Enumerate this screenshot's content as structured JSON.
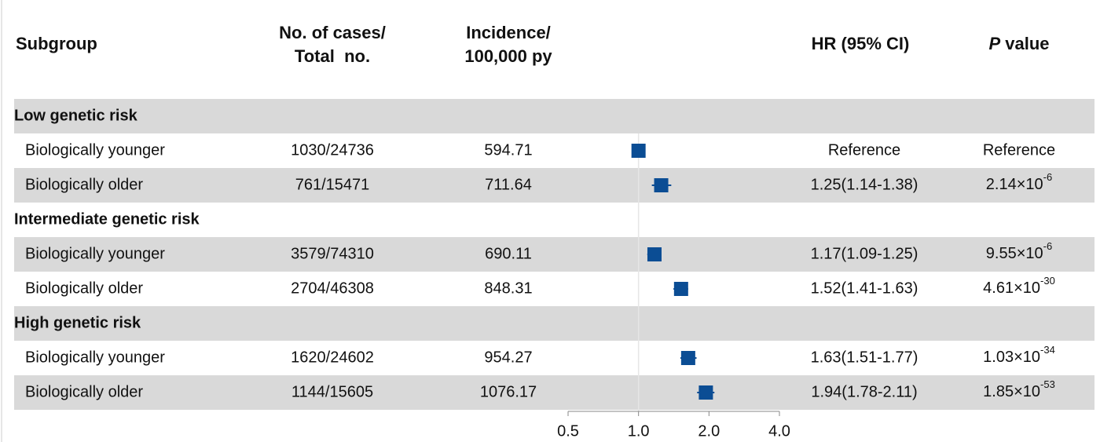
{
  "chart_data": {
    "type": "forest",
    "headers": {
      "subgroup": "Subgroup",
      "cases": [
        "No. of cases/",
        "Total  no."
      ],
      "incidence": [
        "Incidence/",
        "100,000 py"
      ],
      "hr": "HR (95% CI)",
      "p": {
        "italic": "P",
        "rest": "value"
      }
    },
    "groups": [
      {
        "name": "Low  genetic risk",
        "rows": [
          {
            "label": "Biologically younger",
            "cases": "1030/24736",
            "incidence": 594.71,
            "hr": 1,
            "hr_label": "Reference",
            "ci_low": null,
            "ci_high": null,
            "p_value": "Reference"
          },
          {
            "label": "Biologically older",
            "cases": "761/15471",
            "incidence": 711.64,
            "hr": 1.25,
            "hr_label": "1.25(1.14-1.38)",
            "ci_low": 1.14,
            "ci_high": 1.38,
            "p_value": {
              "base": "2.14×10",
              "exp": "-6"
            }
          }
        ]
      },
      {
        "name": "Intermediate genetic risk",
        "rows": [
          {
            "label": "Biologically younger",
            "cases": "3579/74310",
            "incidence": 690.11,
            "hr": 1.17,
            "hr_label": "1.17(1.09-1.25)",
            "ci_low": 1.09,
            "ci_high": 1.25,
            "p_value": {
              "base": "9.55×10",
              "exp": "-6"
            }
          },
          {
            "label": "Biologically older",
            "cases": "2704/46308",
            "incidence": 848.31,
            "hr": 1.52,
            "hr_label": "1.52(1.41-1.63)",
            "ci_low": 1.41,
            "ci_high": 1.63,
            "p_value": {
              "base": "4.61×10",
              "exp": "-30"
            }
          }
        ]
      },
      {
        "name": "High genetic risk",
        "rows": [
          {
            "label": "Biologically younger",
            "cases": "1620/24602",
            "incidence": 954.27,
            "hr": 1.63,
            "hr_label": "1.63(1.51-1.77)",
            "ci_low": 1.51,
            "ci_high": 1.77,
            "p_value": {
              "base": "1.03×10",
              "exp": "-34"
            }
          },
          {
            "label": "Biologically older",
            "cases": "1144/15605",
            "incidence": 1076.17,
            "hr": 1.94,
            "hr_label": "1.94(1.78-2.11)",
            "ci_low": 1.78,
            "ci_high": 2.11,
            "p_value": {
              "base": "1.85×10",
              "exp": "-53"
            }
          }
        ]
      }
    ],
    "log_x": true,
    "xlim": [
      0.5,
      4
    ],
    "xticks": [
      0.5,
      {
        "value": 1,
        "label": "1.0"
      },
      {
        "value": 2,
        "label": "2.0"
      },
      {
        "value": 4,
        "label": "4.0"
      }
    ],
    "reference_line": 1,
    "color": "#0b4d94"
  }
}
